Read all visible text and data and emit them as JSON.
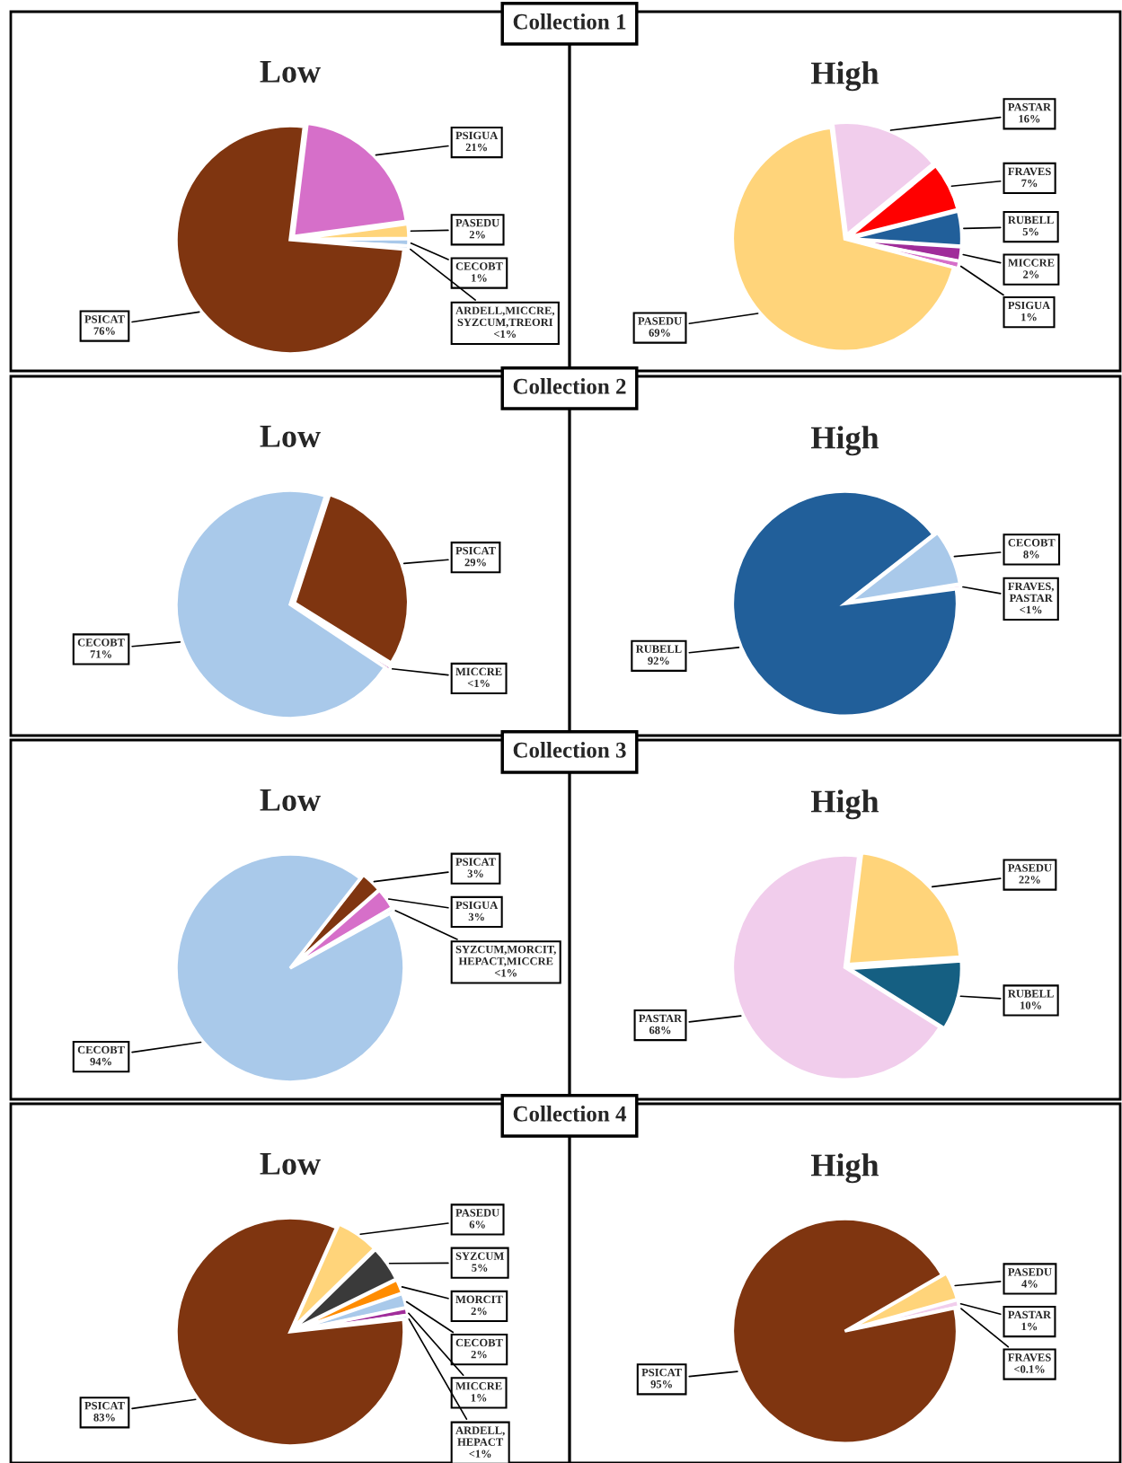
{
  "chart_data": [
    {
      "type": "pie",
      "title": "Low",
      "annotations": [
        "Collection 1"
      ],
      "categories": [
        "PSIGUA",
        "PASEDU",
        "CECOBT",
        "ARDELL,MICCRE,\nSYZCUM,TREORI",
        "PSICAT"
      ],
      "values": [
        21,
        2,
        1,
        0.5,
        76
      ],
      "value_labels": [
        "21%",
        "2%",
        "1%",
        "<1%",
        "76%"
      ],
      "colors": [
        "#d66fc9",
        "#ffd47a",
        "#a9c9ea",
        "#c9dcf2",
        "#7f3510"
      ]
    },
    {
      "type": "pie",
      "title": "High",
      "categories": [
        "PASTAR",
        "FRAVES",
        "RUBELL",
        "MICCRE",
        "PSIGUA",
        "PASEDU"
      ],
      "values": [
        16,
        7,
        5,
        2,
        1,
        69
      ],
      "value_labels": [
        "16%",
        "7%",
        "5%",
        "2%",
        "1%",
        "69%"
      ],
      "colors": [
        "#f1cdec",
        "#ff0000",
        "#215f9a",
        "#a02c9a",
        "#d66fc9",
        "#ffd47a"
      ]
    },
    {
      "type": "pie",
      "title": "Low",
      "annotations": [
        "Collection 2"
      ],
      "categories": [
        "PSICAT",
        "MICCRE",
        "CECOBT"
      ],
      "values": [
        29,
        0.5,
        71
      ],
      "value_labels": [
        "29%",
        "<1%",
        "71%"
      ],
      "colors": [
        "#7f3510",
        "#a02c9a",
        "#a9c9ea"
      ]
    },
    {
      "type": "pie",
      "title": "High",
      "categories": [
        "CECOBT",
        "FRAVES,\nPASTAR",
        "RUBELL"
      ],
      "values": [
        8,
        0.5,
        92
      ],
      "value_labels": [
        "8%",
        "<1%",
        "92%"
      ],
      "colors": [
        "#a9c9ea",
        "#f1cdec",
        "#215f9a"
      ]
    },
    {
      "type": "pie",
      "title": "Low",
      "annotations": [
        "Collection 3"
      ],
      "categories": [
        "PSICAT",
        "PSIGUA",
        "SYZCUM,MORCIT,\nHEPACT,MICCRE",
        "CECOBT"
      ],
      "values": [
        3,
        3,
        0.5,
        94
      ],
      "value_labels": [
        "3%",
        "3%",
        "<1%",
        "94%"
      ],
      "colors": [
        "#7f3510",
        "#d66fc9",
        "#c9dcf2",
        "#a9c9ea"
      ]
    },
    {
      "type": "pie",
      "title": "High",
      "categories": [
        "PASEDU",
        "RUBELL",
        "PASTAR"
      ],
      "values": [
        22,
        10,
        68
      ],
      "value_labels": [
        "22%",
        "10%",
        "68%"
      ],
      "colors": [
        "#ffd47a",
        "#155f82",
        "#f1cdec"
      ]
    },
    {
      "type": "pie",
      "title": "Low",
      "annotations": [
        "Collection 4"
      ],
      "categories": [
        "PASEDU",
        "SYZCUM",
        "MORCIT",
        "CECOBT",
        "MICCRE",
        "ARDELL,\nHEPACT",
        "PSICAT"
      ],
      "values": [
        6,
        5,
        2,
        2,
        1,
        0.5,
        83
      ],
      "value_labels": [
        "6%",
        "5%",
        "2%",
        "2%",
        "1%",
        "<1%",
        "83%"
      ],
      "colors": [
        "#ffd47a",
        "#3a3a3a",
        "#ff8c00",
        "#a9c9ea",
        "#a02c9a",
        "#c9dcf2",
        "#7f3510"
      ]
    },
    {
      "type": "pie",
      "title": "High",
      "categories": [
        "PASEDU",
        "PASTAR",
        "FRAVES",
        "PSICAT"
      ],
      "values": [
        4,
        1,
        0.05,
        95
      ],
      "value_labels": [
        "4%",
        "1%",
        "<0.1%",
        "95%"
      ],
      "colors": [
        "#ffd47a",
        "#f1cdec",
        "#ff0000",
        "#7f3510"
      ]
    }
  ]
}
